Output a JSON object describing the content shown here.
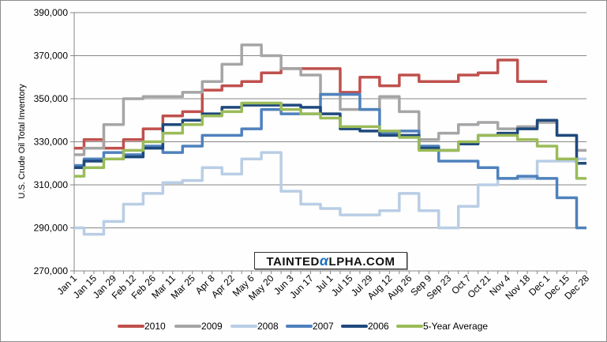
{
  "chart_data": {
    "type": "line",
    "title": "",
    "xlabel": "",
    "ylabel": "U.S. Crude Oil Total Inventory",
    "ylim": [
      270000,
      390000
    ],
    "yticks": [
      "270,000",
      "290,000",
      "310,000",
      "330,000",
      "350,000",
      "370,000",
      "390,000"
    ],
    "ytick_values": [
      270000,
      290000,
      310000,
      330000,
      350000,
      370000,
      390000
    ],
    "grid": true,
    "legend_position": "bottom",
    "watermark": "TAINTEDαLPHA.COM",
    "categories": [
      "Jan 1",
      "Jan 15",
      "Jan 29",
      "Feb 12",
      "Feb 26",
      "Mar 11",
      "Mar 25",
      "Apr 8",
      "Apr 22",
      "May 6",
      "May 20",
      "Jun 3",
      "Jun 17",
      "Jul 1",
      "Jul 15",
      "Jul 29",
      "Aug 12",
      "Aug 26",
      "Sep 9",
      "Sep 23",
      "Oct 7",
      "Oct 21",
      "Nov 4",
      "Nov 18",
      "Dec 1",
      "Dec 15",
      "Dec 28"
    ],
    "series": [
      {
        "name": "2010",
        "color": "#c0504d",
        "values": [
          327000,
          331000,
          327000,
          331000,
          336000,
          342000,
          344000,
          354000,
          356000,
          358000,
          362000,
          364000,
          364000,
          364000,
          353000,
          360000,
          356000,
          361000,
          358000,
          358000,
          361000,
          362000,
          368000,
          358000,
          358000,
          null,
          null
        ]
      },
      {
        "name": "2009",
        "color": "#a5a5a5",
        "values": [
          324000,
          327000,
          338000,
          350000,
          351000,
          351000,
          353000,
          358000,
          366000,
          375000,
          370000,
          364000,
          361000,
          352000,
          345000,
          345000,
          351000,
          344000,
          331000,
          334000,
          338000,
          339000,
          336000,
          337000,
          339000,
          333000,
          326000
        ]
      },
      {
        "name": "2008",
        "color": "#b9cde5",
        "values": [
          290000,
          287000,
          293000,
          301000,
          306000,
          311000,
          312000,
          318000,
          315000,
          322000,
          325000,
          307000,
          301000,
          299000,
          296000,
          296000,
          298000,
          306000,
          298000,
          290000,
          300000,
          310000,
          313000,
          313000,
          321000,
          321000,
          322000
        ]
      },
      {
        "name": "2007",
        "color": "#4f81bd",
        "values": [
          319000,
          322000,
          325000,
          324000,
          328000,
          325000,
          328000,
          333000,
          333000,
          336000,
          345000,
          343000,
          343000,
          352000,
          352000,
          345000,
          334000,
          335000,
          328000,
          321000,
          321000,
          318000,
          313000,
          314000,
          313000,
          304000,
          290000
        ]
      },
      {
        "name": "2006",
        "color": "#1f497d",
        "values": [
          318000,
          321000,
          322000,
          323000,
          327000,
          338000,
          340000,
          343000,
          346000,
          347000,
          347000,
          347000,
          346000,
          343000,
          336000,
          335000,
          333000,
          333000,
          327000,
          326000,
          329000,
          333000,
          334000,
          336000,
          340000,
          333000,
          320000
        ]
      },
      {
        "name": "5-Year Average",
        "color": "#9bbb59",
        "values": [
          314000,
          318000,
          322000,
          326000,
          330000,
          334000,
          338000,
          342000,
          344000,
          348000,
          348000,
          345000,
          343000,
          341000,
          337000,
          337000,
          335000,
          332000,
          326000,
          326000,
          330000,
          333000,
          333000,
          331000,
          328000,
          322000,
          313000
        ]
      }
    ]
  }
}
